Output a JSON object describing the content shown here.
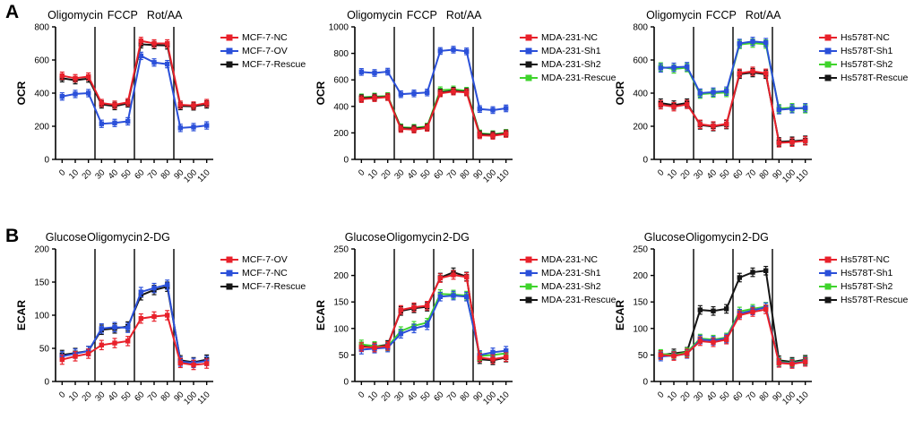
{
  "panels": [
    {
      "label": "A"
    },
    {
      "label": "B"
    }
  ],
  "colors": {
    "red": "#e8212b",
    "blue": "#2b50d9",
    "green": "#3fd42c",
    "black": "#151515"
  },
  "chart_data": [
    {
      "type": "line",
      "panel": "A",
      "cell_line": "MCF-7",
      "ylabel": "OCR",
      "ylim": [
        0,
        800
      ],
      "ytick_step": 200,
      "x": [
        0,
        10,
        20,
        30,
        40,
        50,
        60,
        70,
        80,
        90,
        100,
        110
      ],
      "vlines": [
        25,
        55,
        85
      ],
      "annotations": [
        {
          "text": "Oligomycin",
          "x": 10
        },
        {
          "text": "FCCP",
          "x": 46
        },
        {
          "text": "Rot/AA",
          "x": 78
        }
      ],
      "error": 22,
      "grid": false,
      "legend_position": "right-top",
      "series": [
        {
          "name": "MCF-7-NC",
          "color": "#e8212b",
          "values": [
            505,
            490,
            500,
            340,
            330,
            345,
            715,
            700,
            700,
            330,
            325,
            340
          ]
        },
        {
          "name": "MCF-7-OV",
          "color": "#2b50d9",
          "values": [
            380,
            395,
            400,
            215,
            220,
            230,
            625,
            585,
            575,
            190,
            195,
            205
          ]
        },
        {
          "name": "MCF-7-Rescue",
          "color": "#151515",
          "values": [
            490,
            478,
            488,
            332,
            322,
            338,
            695,
            690,
            688,
            322,
            320,
            332
          ]
        }
      ]
    },
    {
      "type": "line",
      "panel": "A",
      "cell_line": "MDA-231",
      "ylabel": "OCR",
      "ylim": [
        0,
        1000
      ],
      "ytick_step": 200,
      "x": [
        0,
        10,
        20,
        30,
        40,
        50,
        60,
        70,
        80,
        90,
        100,
        110
      ],
      "vlines": [
        25,
        55,
        85
      ],
      "annotations": [
        {
          "text": "Oligomycin",
          "x": 10
        },
        {
          "text": "FCCP",
          "x": 46
        },
        {
          "text": "Rot/AA",
          "x": 78
        }
      ],
      "error": 25,
      "grid": false,
      "legend_position": "right-top",
      "series": [
        {
          "name": "MDA-231-NC",
          "color": "#e8212b",
          "values": [
            455,
            462,
            470,
            230,
            225,
            238,
            498,
            512,
            505,
            182,
            178,
            192
          ]
        },
        {
          "name": "MDA-231-Sh1",
          "color": "#2b50d9",
          "values": [
            660,
            652,
            662,
            492,
            498,
            505,
            818,
            828,
            815,
            380,
            372,
            385
          ]
        },
        {
          "name": "MDA-231-Sh2",
          "color": "#151515",
          "values": [
            462,
            468,
            472,
            236,
            232,
            242,
            505,
            518,
            510,
            190,
            185,
            196
          ]
        },
        {
          "name": "MDA-231-Rescue",
          "color": "#3fd42c",
          "values": [
            468,
            474,
            478,
            242,
            238,
            248,
            522,
            528,
            518,
            196,
            190,
            200
          ]
        }
      ]
    },
    {
      "type": "line",
      "panel": "A",
      "cell_line": "Hs578T",
      "ylabel": "OCR",
      "ylim": [
        0,
        800
      ],
      "ytick_step": 200,
      "x": [
        0,
        10,
        20,
        30,
        40,
        50,
        60,
        70,
        80,
        90,
        100,
        110
      ],
      "vlines": [
        25,
        55,
        85
      ],
      "annotations": [
        {
          "text": "Oligomycin",
          "x": 10
        },
        {
          "text": "FCCP",
          "x": 46
        },
        {
          "text": "Rot/AA",
          "x": 78
        }
      ],
      "error": 25,
      "grid": false,
      "legend_position": "right-top",
      "series": [
        {
          "name": "Hs578T-NC",
          "color": "#e8212b",
          "values": [
            330,
            318,
            332,
            212,
            202,
            214,
            520,
            532,
            520,
            100,
            104,
            112
          ]
        },
        {
          "name": "Hs578T-Sh1",
          "color": "#2b50d9",
          "values": [
            552,
            556,
            560,
            400,
            406,
            412,
            700,
            712,
            705,
            300,
            306,
            312
          ]
        },
        {
          "name": "Hs578T-Sh2",
          "color": "#3fd42c",
          "values": [
            558,
            546,
            554,
            394,
            400,
            404,
            694,
            702,
            696,
            306,
            312,
            306
          ]
        },
        {
          "name": "Hs578T-Rescue",
          "color": "#151515",
          "values": [
            340,
            328,
            340,
            208,
            198,
            210,
            514,
            524,
            514,
            106,
            110,
            116
          ]
        }
      ]
    },
    {
      "type": "line",
      "panel": "B",
      "cell_line": "MCF-7",
      "ylabel": "ECAR",
      "ylim": [
        0,
        200
      ],
      "ytick_step": 50,
      "x": [
        0,
        10,
        20,
        30,
        40,
        50,
        60,
        70,
        80,
        90,
        100,
        110
      ],
      "vlines": [
        25,
        55,
        85
      ],
      "annotations": [
        {
          "text": "Glucose",
          "x": 3
        },
        {
          "text": "Oligomycin",
          "x": 40
        },
        {
          "text": "2-DG",
          "x": 72
        }
      ],
      "error": 7,
      "grid": false,
      "legend_position": "right-top",
      "series": [
        {
          "name": "MCF-7-OV",
          "color": "#e8212b",
          "values": [
            33,
            38,
            42,
            55,
            58,
            61,
            95,
            98,
            100,
            28,
            25,
            27
          ]
        },
        {
          "name": "MCF-7-NC",
          "color": "#2b50d9",
          "values": [
            38,
            42,
            46,
            80,
            82,
            81,
            135,
            141,
            146,
            30,
            28,
            31
          ]
        },
        {
          "name": "MCF-7-Rescue",
          "color": "#151515",
          "values": [
            40,
            43,
            46,
            78,
            80,
            83,
            130,
            138,
            143,
            32,
            29,
            33
          ]
        }
      ]
    },
    {
      "type": "line",
      "panel": "B",
      "cell_line": "MDA-231",
      "ylabel": "ECAR",
      "ylim": [
        0,
        250
      ],
      "ytick_step": 50,
      "x": [
        0,
        10,
        20,
        30,
        40,
        50,
        60,
        70,
        80,
        90,
        100,
        110
      ],
      "vlines": [
        25,
        55,
        85
      ],
      "annotations": [
        {
          "text": "Glucose",
          "x": 3
        },
        {
          "text": "Oligomycin",
          "x": 40
        },
        {
          "text": "2-DG",
          "x": 72
        }
      ],
      "error": 8,
      "grid": false,
      "legend_position": "right-top",
      "series": [
        {
          "name": "MDA-231-NC",
          "color": "#e8212b",
          "values": [
            65,
            64,
            67,
            135,
            140,
            143,
            195,
            201,
            197,
            45,
            42,
            46
          ]
        },
        {
          "name": "MDA-231-Sh1",
          "color": "#2b50d9",
          "values": [
            60,
            62,
            64,
            90,
            100,
            106,
            160,
            162,
            160,
            50,
            55,
            58
          ]
        },
        {
          "name": "MDA-231-Sh2",
          "color": "#3fd42c",
          "values": [
            70,
            67,
            66,
            95,
            105,
            111,
            165,
            164,
            162,
            48,
            50,
            53
          ]
        },
        {
          "name": "MDA-231-Rescue",
          "color": "#151515",
          "values": [
            66,
            66,
            69,
            133,
            138,
            141,
            196,
            206,
            198,
            42,
            40,
            45
          ]
        }
      ]
    },
    {
      "type": "line",
      "panel": "B",
      "cell_line": "Hs578T",
      "ylabel": "ECAR",
      "ylim": [
        0,
        250
      ],
      "ytick_step": 50,
      "x": [
        0,
        10,
        20,
        30,
        40,
        50,
        60,
        70,
        80,
        90,
        100,
        110
      ],
      "vlines": [
        25,
        55,
        85
      ],
      "annotations": [
        {
          "text": "Glucose",
          "x": 3
        },
        {
          "text": "Oligomycin",
          "x": 40
        },
        {
          "text": "2-DG",
          "x": 72
        }
      ],
      "error": 8,
      "grid": false,
      "legend_position": "right-top",
      "series": [
        {
          "name": "Hs578T-NC",
          "color": "#e8212b",
          "values": [
            50,
            48,
            53,
            76,
            74,
            79,
            125,
            131,
            136,
            35,
            33,
            37
          ]
        },
        {
          "name": "Hs578T-Sh1",
          "color": "#2b50d9",
          "values": [
            47,
            49,
            52,
            79,
            77,
            81,
            128,
            134,
            140,
            36,
            34,
            38
          ]
        },
        {
          "name": "Hs578T-Sh2",
          "color": "#3fd42c",
          "values": [
            52,
            50,
            55,
            81,
            79,
            83,
            132,
            137,
            141,
            37,
            35,
            39
          ]
        },
        {
          "name": "Hs578T-Rescue",
          "color": "#151515",
          "values": [
            50,
            53,
            56,
            135,
            133,
            137,
            196,
            206,
            209,
            40,
            37,
            41
          ]
        }
      ]
    }
  ]
}
